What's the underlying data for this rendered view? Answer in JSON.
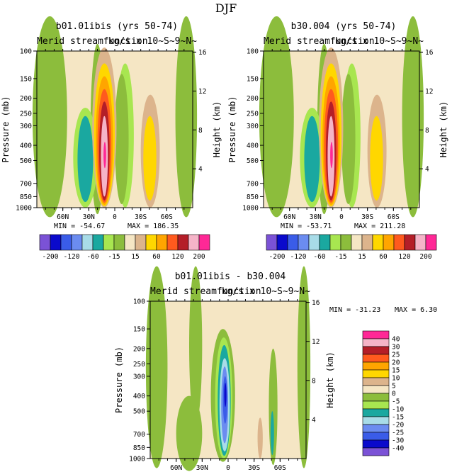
{
  "figure": {
    "suptitle": "DJF",
    "palette": {
      "-40": "#7b52d6",
      "-30": "#0a0acc",
      "-25": "#3a5ce8",
      "-20": "#6b8cf0",
      "-15": "#a8dce8",
      "-10": "#1aa8a0",
      "-5": "#a8e650",
      "0": "#8cbd3c",
      "5": "#f5e6c4",
      "10": "#dcb48c",
      "15": "#ffd700",
      "20": "#ffa500",
      "25": "#ff5a1e",
      "30": "#b41e28",
      "40": "#f5b4c8",
      "50": "#ff2896"
    }
  },
  "chart_data": [
    {
      "type": "heatmap",
      "title": "b01.01ibis (yrs 50-74)",
      "left_string": "Merid streamfunction",
      "right_string": "kg/s x 10~S~9~N~",
      "xlabel": "",
      "ylabel": "Pressure (mb)",
      "ylabel_right": "Height (km)",
      "x_ticks": [
        "60N",
        "30N",
        "0",
        "30S",
        "60S"
      ],
      "y_ticks": [
        100,
        150,
        200,
        250,
        300,
        400,
        500,
        700,
        850,
        1000
      ],
      "y_right_ticks": [
        4,
        8,
        12,
        16
      ],
      "min_label": "MIN = -54.67",
      "max_label": "MAX = 186.35",
      "colorbar_labels": [
        "-200",
        "-120",
        "-60",
        "-15",
        "15",
        "60",
        "120",
        "200"
      ],
      "colorbar_orientation": "horizontal",
      "cells": [
        {
          "x": [
            32,
            14
          ],
          "level": "-10"
        },
        {
          "x": [
            15,
            0
          ],
          "level": "50"
        },
        {
          "x": [
            -20,
            -35
          ],
          "level": "15"
        },
        {
          "x": [
            -40,
            -50
          ],
          "level": "10"
        }
      ]
    },
    {
      "type": "heatmap",
      "title": "b30.004 (yrs 50-74)",
      "left_string": "Merid streamfunction",
      "right_string": "kg/s x 10~S~9~N~",
      "xlabel": "",
      "ylabel": "Pressure (mb)",
      "ylabel_right": "Height (km)",
      "x_ticks": [
        "60N",
        "30N",
        "0",
        "30S",
        "60S"
      ],
      "y_ticks": [
        100,
        150,
        200,
        250,
        300,
        400,
        500,
        700,
        850,
        1000
      ],
      "y_right_ticks": [
        4,
        8,
        12,
        16
      ],
      "min_label": "MIN = -53.71",
      "max_label": "MAX = 211.28",
      "colorbar_labels": [
        "-200",
        "-120",
        "-60",
        "-15",
        "15",
        "60",
        "120",
        "200"
      ],
      "colorbar_orientation": "horizontal"
    },
    {
      "type": "heatmap",
      "title": "b01.01ibis - b30.004",
      "left_string": "Merid streamfunction",
      "right_string": "kg/s x 10~S~9~N~",
      "xlabel": "",
      "ylabel": "Pressure (mb)",
      "ylabel_right": "Height (km)",
      "x_ticks": [
        "60N",
        "30N",
        "0",
        "30S",
        "60S"
      ],
      "y_ticks": [
        100,
        150,
        200,
        250,
        300,
        400,
        500,
        700,
        850,
        1000
      ],
      "y_right_ticks": [
        4,
        8,
        12,
        16
      ],
      "min_label": "MIN = -31.23",
      "max_label": "MAX =   6.30",
      "colorbar_labels": [
        "40",
        "30",
        "25",
        "20",
        "15",
        "10",
        "5",
        "0",
        "-5",
        "-10",
        "-15",
        "-20",
        "-25",
        "-30",
        "-40"
      ],
      "colorbar_orientation": "vertical"
    }
  ]
}
